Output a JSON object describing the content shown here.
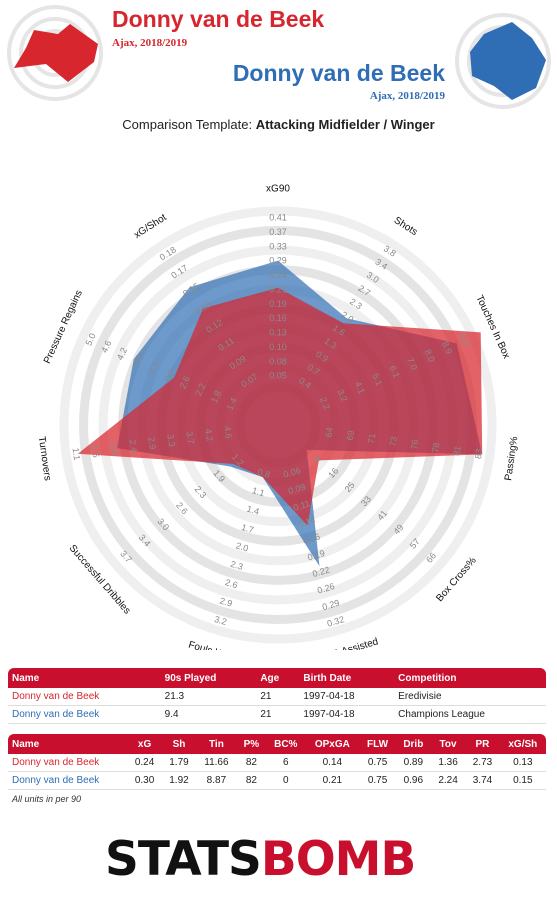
{
  "player1": {
    "name": "Donny van de Beek",
    "sub": "Ajax, 2018/2019",
    "color": "#d7262e"
  },
  "player2": {
    "name": "Donny van de Beek",
    "sub": "Ajax, 2018/2019",
    "color": "#2f6db5"
  },
  "template_label": "Comparison Template: ",
  "template_name": "Attacking Midfielder / Winger",
  "chart_data": {
    "type": "radar",
    "rings": 10,
    "axes": [
      {
        "label": "xG90",
        "ticks": [
          "0.05",
          "0.08",
          "0.10",
          "0.13",
          "0.16",
          "0.19",
          "0.21",
          "0.24",
          "0.29",
          "0.33",
          "0.37",
          "0.41"
        ],
        "min": 0.02,
        "max": 0.41,
        "invert": false
      },
      {
        "label": "Shots",
        "ticks": [
          "0.4",
          "0.7",
          "0.9",
          "1.3",
          "1.6",
          "2.0",
          "2.3",
          "2.7",
          "3.0",
          "3.4",
          "3.8"
        ],
        "min": 0.0,
        "max": 3.8,
        "invert": false
      },
      {
        "label": "Touches In Box",
        "ticks": [
          "2.2",
          "3.2",
          "4.1",
          "5.1",
          "6.1",
          "7.0",
          "8.0",
          "8.9",
          "9.8"
        ],
        "min": 0.5,
        "max": 9.8,
        "invert": false
      },
      {
        "label": "Passing%",
        "ticks": [
          "64",
          "69",
          "71",
          "73",
          "76",
          "78",
          "81",
          "83"
        ],
        "min": 60,
        "max": 83,
        "invert": false
      },
      {
        "label": "Box Cross%",
        "ticks": [
          "8",
          "16",
          "25",
          "33",
          "41",
          "49",
          "57",
          "66"
        ],
        "min": 0,
        "max": 66,
        "invert": false
      },
      {
        "label": "OP xG Assisted",
        "ticks": [
          "0.06",
          "0.09",
          "0.11",
          "0.14",
          "0.16",
          "0.19",
          "0.22",
          "0.26",
          "0.29",
          "0.32"
        ],
        "min": 0.03,
        "max": 0.32,
        "invert": false
      },
      {
        "label": "Fouls Won",
        "ticks": [
          "0.8",
          "1.1",
          "1.4",
          "1.7",
          "2.0",
          "2.3",
          "2.6",
          "2.9",
          "3.2"
        ],
        "min": 0.5,
        "max": 3.2,
        "invert": false
      },
      {
        "label": "Successful Dribbles",
        "ticks": [
          "1.2",
          "1.9",
          "2.3",
          "2.6",
          "3.0",
          "3.4",
          "3.7"
        ],
        "min": 0.5,
        "max": 3.7,
        "invert": false
      },
      {
        "label": "Turnovers",
        "ticks": [
          "4.6",
          "4.2",
          "3.7",
          "3.3",
          "2.9",
          "2.4",
          "2.0",
          "1.5",
          "1.1"
        ],
        "min": 5.0,
        "max": 1.1,
        "invert": true
      },
      {
        "label": "Pressure Regains",
        "ticks": [
          "1.4",
          "1.8",
          "2.2",
          "2.6",
          "3.0",
          "3.4",
          "3.8",
          "4.2",
          "4.6",
          "5.0"
        ],
        "min": 1.0,
        "max": 5.0,
        "invert": false
      },
      {
        "label": "xG/Shot",
        "ticks": [
          "0.07",
          "0.09",
          "0.11",
          "0.12",
          "0.13",
          "0.15",
          "0.17",
          "0.18"
        ],
        "min": 0.05,
        "max": 0.19,
        "invert": false
      }
    ],
    "series": [
      {
        "name": "Donny van de Beek",
        "color": "#d7262e",
        "values": [
          0.24,
          1.79,
          11.66,
          82,
          6,
          0.14,
          0.75,
          0.89,
          1.36,
          2.73,
          0.13
        ]
      },
      {
        "name": "Donny van de Beek",
        "color": "#2f6db5",
        "values": [
          0.3,
          1.92,
          8.87,
          82,
          0,
          0.21,
          0.75,
          0.96,
          2.24,
          3.74,
          0.15
        ]
      }
    ]
  },
  "table1": {
    "headers": [
      "Name",
      "90s Played",
      "Age",
      "Birth Date",
      "Competition"
    ],
    "rows": [
      [
        "Donny van de Beek",
        "21.3",
        "21",
        "1997-04-18",
        "Eredivisie"
      ],
      [
        "Donny van de Beek",
        "9.4",
        "21",
        "1997-04-18",
        "Champions League"
      ]
    ]
  },
  "table2": {
    "headers": [
      "Name",
      "xG",
      "Sh",
      "Tin",
      "P%",
      "BC%",
      "OPxGA",
      "FLW",
      "Drib",
      "Tov",
      "PR",
      "xG/Sh"
    ],
    "rows": [
      [
        "Donny van de Beek",
        "0.24",
        "1.79",
        "11.66",
        "82",
        "6",
        "0.14",
        "0.75",
        "0.89",
        "1.36",
        "2.73",
        "0.13"
      ],
      [
        "Donny van de Beek",
        "0.30",
        "1.92",
        "8.87",
        "82",
        "0",
        "0.21",
        "0.75",
        "0.96",
        "2.24",
        "3.74",
        "0.15"
      ]
    ]
  },
  "units_note": "All units in per 90",
  "logo": {
    "part1": "STATS",
    "part2": "BOMB"
  }
}
